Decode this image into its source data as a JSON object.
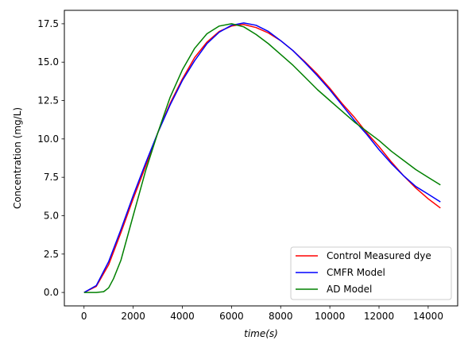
{
  "chart_data": {
    "type": "line",
    "xlabel": "time(s)",
    "ylabel": "Concentration (mg/L)",
    "xlim": [
      -800,
      15200
    ],
    "ylim": [
      -0.875,
      18.375
    ],
    "xticks": [
      0,
      2000,
      4000,
      6000,
      8000,
      10000,
      12000,
      14000
    ],
    "xtick_labels": [
      "0",
      "2000",
      "4000",
      "6000",
      "8000",
      "10000",
      "12000",
      "14000"
    ],
    "yticks": [
      0.0,
      2.5,
      5.0,
      7.5,
      10.0,
      12.5,
      15.0,
      17.5
    ],
    "ytick_labels": [
      "0.0",
      "2.5",
      "5.0",
      "7.5",
      "10.0",
      "12.5",
      "15.0",
      "17.5"
    ],
    "grid": false,
    "legend_position": "lower-right",
    "series": [
      {
        "name": "Control Measured dye",
        "color": "#ff0000",
        "x": [
          0,
          500,
          1000,
          1500,
          2000,
          2500,
          3000,
          3500,
          4000,
          4500,
          5000,
          5500,
          6000,
          6200,
          6500,
          7000,
          7500,
          8000,
          8500,
          9000,
          9500,
          10000,
          10500,
          11000,
          11500,
          12000,
          12500,
          13000,
          13500,
          14000,
          14500
        ],
        "y": [
          0.0,
          0.4,
          1.8,
          3.9,
          6.1,
          8.2,
          10.4,
          12.3,
          13.9,
          15.3,
          16.3,
          17.0,
          17.35,
          17.4,
          17.45,
          17.25,
          16.9,
          16.4,
          15.75,
          15.0,
          14.2,
          13.3,
          12.3,
          11.4,
          10.4,
          9.5,
          8.5,
          7.6,
          6.8,
          6.1,
          5.5
        ]
      },
      {
        "name": "CMFR Model",
        "color": "#0000ff",
        "x": [
          0,
          500,
          1000,
          1500,
          2000,
          2500,
          3000,
          3500,
          4000,
          4500,
          5000,
          5500,
          6000,
          6500,
          7000,
          7500,
          8000,
          8500,
          9000,
          9500,
          10000,
          10500,
          11000,
          11500,
          12000,
          12500,
          13000,
          13500,
          14000,
          14500
        ],
        "y": [
          0.0,
          0.45,
          2.0,
          4.1,
          6.3,
          8.4,
          10.4,
          12.2,
          13.8,
          15.1,
          16.2,
          16.95,
          17.4,
          17.55,
          17.4,
          17.0,
          16.4,
          15.75,
          14.95,
          14.1,
          13.2,
          12.2,
          11.2,
          10.3,
          9.3,
          8.4,
          7.6,
          6.9,
          6.4,
          5.9
        ]
      },
      {
        "name": "AD Model",
        "color": "#008000",
        "x": [
          0,
          500,
          800,
          1000,
          1200,
          1500,
          2000,
          2500,
          3000,
          3500,
          4000,
          4500,
          5000,
          5500,
          6000,
          6500,
          7000,
          7500,
          8000,
          8500,
          9000,
          9500,
          10000,
          10500,
          11000,
          11500,
          12000,
          12500,
          13000,
          13500,
          14000,
          14500
        ],
        "y": [
          0.0,
          0.0,
          0.05,
          0.3,
          0.9,
          2.1,
          5.0,
          7.9,
          10.4,
          12.7,
          14.5,
          15.9,
          16.85,
          17.35,
          17.5,
          17.3,
          16.8,
          16.2,
          15.5,
          14.8,
          14.0,
          13.2,
          12.5,
          11.8,
          11.1,
          10.5,
          9.9,
          9.2,
          8.6,
          8.0,
          7.5,
          7.0
        ]
      }
    ]
  }
}
